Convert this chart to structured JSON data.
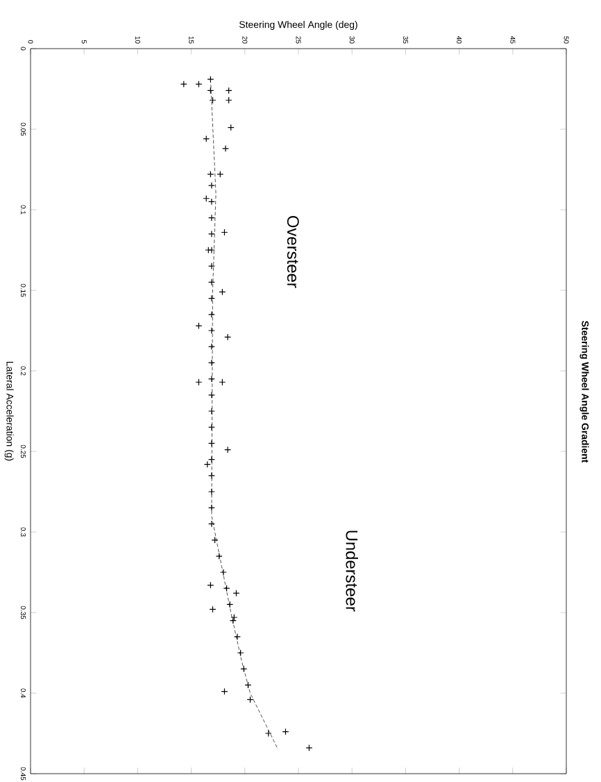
{
  "chart_data": {
    "type": "scatter",
    "title": "Steering Wheel Angle Gradient",
    "xlabel": "Steering Wheel Angle (deg)",
    "ylabel": "Lateral Acceleration (g)",
    "xlim": [
      0,
      50
    ],
    "ylim": [
      0.45,
      0
    ],
    "xticks": [
      0,
      5,
      10,
      15,
      20,
      25,
      30,
      35,
      40,
      45,
      50
    ],
    "yticks": [
      0,
      0.05,
      0.1,
      0.15,
      0.2,
      0.25,
      0.3,
      0.35,
      0.4,
      0.45
    ],
    "grid": false,
    "annotations": [
      "Oversteer",
      "Understeer"
    ],
    "series": [
      {
        "marker": "cross",
        "color": "#000000",
        "values": [
          0.022,
          0.022,
          0.019,
          0.026,
          0.026,
          0.032,
          0.032,
          0.049,
          0.056,
          0.062,
          0.078,
          0.078,
          0.093,
          0.114,
          0.125,
          0.151,
          0.172,
          0.179,
          0.207,
          0.207,
          0.249,
          0.258,
          0.333,
          0.348,
          0.338,
          0.353,
          0.399,
          0.425,
          0.424,
          0.434,
          0.085,
          0.095,
          0.105,
          0.115,
          0.125,
          0.135,
          0.145,
          0.155,
          0.165,
          0.175,
          0.185,
          0.195,
          0.205,
          0.215,
          0.225,
          0.235,
          0.245,
          0.255,
          0.265,
          0.275,
          0.285,
          0.295,
          0.305,
          0.315,
          0.325,
          0.335,
          0.345,
          0.355,
          0.365,
          0.375,
          0.385,
          0.395,
          0.404
        ],
        "x": [
          14.3,
          15.7,
          16.8,
          16.8,
          18.5,
          18.5,
          17.0,
          18.7,
          16.4,
          18.2,
          16.8,
          17.7,
          16.4,
          18.1,
          16.6,
          17.9,
          15.7,
          18.4,
          15.7,
          17.9,
          18.4,
          16.5,
          16.8,
          17.0,
          19.2,
          19.0,
          18.1,
          22.2,
          23.8,
          26.0,
          16.9,
          16.9,
          16.9,
          16.9,
          16.9,
          16.9,
          16.9,
          16.9,
          16.9,
          16.9,
          16.9,
          16.9,
          16.9,
          16.9,
          16.9,
          16.9,
          16.9,
          16.9,
          16.9,
          16.9,
          16.9,
          16.9,
          17.2,
          17.6,
          18.0,
          18.3,
          18.6,
          18.9,
          19.3,
          19.6,
          19.9,
          20.3,
          20.5
        ]
      },
      {
        "type": "line",
        "line_style": "dashed",
        "marker": "none",
        "color": "#505050",
        "values": [
          0.019,
          0.09,
          0.15,
          0.29,
          0.32,
          0.35,
          0.38,
          0.4,
          0.435
        ],
        "x": [
          16.8,
          17.3,
          17.0,
          16.9,
          17.8,
          18.7,
          19.7,
          20.5,
          23.1
        ]
      }
    ]
  }
}
